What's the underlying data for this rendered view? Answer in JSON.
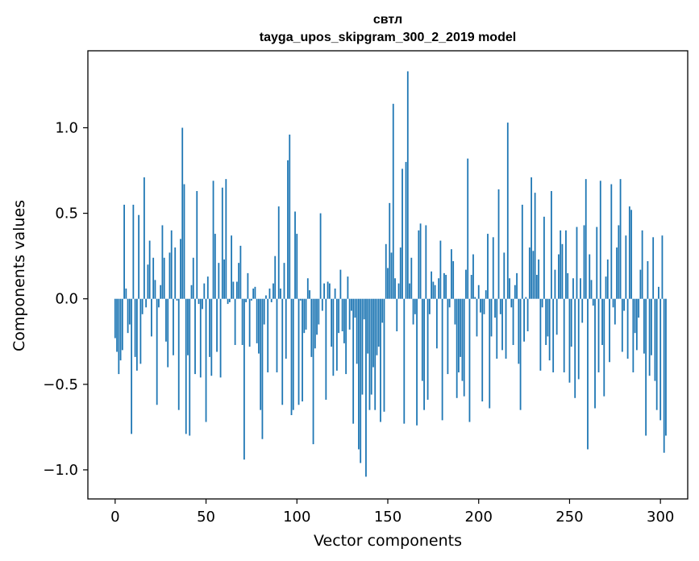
{
  "chart_data": {
    "type": "bar",
    "title": "свтл",
    "subtitle": "tayga_upos_skipgram_300_2_2019 model",
    "xlabel": "Vector components",
    "ylabel": "Components values",
    "xlim": [
      -15,
      315
    ],
    "ylim": [
      -1.17,
      1.45
    ],
    "xticks": [
      0,
      50,
      100,
      150,
      200,
      250,
      300
    ],
    "xtick_labels": [
      "0",
      "50",
      "100",
      "150",
      "200",
      "250",
      "300"
    ],
    "yticks": [
      -1.0,
      -0.5,
      0.0,
      0.5,
      1.0
    ],
    "ytick_labels": [
      "−1.0",
      "−0.5",
      "0.0",
      "0.5",
      "1.0"
    ],
    "color": "#1f77b4",
    "values": [
      -0.23,
      -0.31,
      -0.44,
      -0.36,
      -0.3,
      0.55,
      0.06,
      -0.2,
      -0.15,
      -0.79,
      0.55,
      -0.34,
      -0.42,
      0.49,
      -0.38,
      -0.09,
      0.71,
      -0.05,
      0.2,
      0.34,
      -0.22,
      0.24,
      0.11,
      -0.62,
      -0.05,
      0.08,
      0.43,
      0.24,
      -0.25,
      -0.4,
      0.27,
      0.4,
      -0.33,
      0.3,
      -0.01,
      -0.65,
      0.35,
      1.0,
      0.67,
      -0.79,
      -0.33,
      -0.8,
      0.08,
      0.24,
      -0.44,
      0.63,
      -0.03,
      -0.46,
      -0.06,
      0.09,
      -0.72,
      0.13,
      -0.34,
      -0.45,
      0.69,
      0.38,
      -0.31,
      0.21,
      -0.46,
      0.65,
      0.23,
      0.7,
      -0.03,
      -0.02,
      0.37,
      0.1,
      -0.27,
      0.1,
      0.21,
      0.31,
      -0.27,
      -0.94,
      -0.02,
      0.15,
      -0.28,
      -0.01,
      0.06,
      0.07,
      -0.26,
      -0.32,
      -0.65,
      -0.82,
      -0.15,
      0.02,
      -0.43,
      0.06,
      -0.02,
      0.09,
      0.25,
      -0.43,
      0.54,
      0.06,
      -0.62,
      0.21,
      -0.35,
      0.81,
      0.96,
      -0.68,
      -0.65,
      0.51,
      0.38,
      -0.62,
      -0.01,
      -0.6,
      -0.2,
      -0.18,
      0.12,
      0.05,
      -0.34,
      -0.85,
      -0.29,
      -0.21,
      -0.15,
      0.5,
      -0.07,
      0.09,
      -0.59,
      0.1,
      0.09,
      -0.28,
      -0.45,
      0.06,
      -0.42,
      -0.2,
      0.17,
      -0.19,
      -0.26,
      -0.44,
      0.13,
      -0.18,
      -0.07,
      -0.73,
      -0.11,
      -0.38,
      -0.88,
      -0.96,
      -0.56,
      -0.12,
      -1.04,
      -0.32,
      -0.65,
      -0.56,
      -0.4,
      -0.65,
      -0.33,
      -0.28,
      -0.72,
      -0.14,
      -0.66,
      0.32,
      0.18,
      0.56,
      0.27,
      1.14,
      0.12,
      -0.19,
      0.09,
      0.3,
      0.76,
      -0.73,
      0.8,
      1.33,
      0.09,
      0.24,
      -0.15,
      -0.09,
      -0.74,
      0.4,
      0.44,
      -0.48,
      -0.65,
      0.43,
      -0.59,
      -0.09,
      0.16,
      0.1,
      0.08,
      -0.29,
      0.12,
      0.34,
      -0.71,
      0.15,
      0.14,
      -0.44,
      -0.05,
      0.29,
      0.22,
      -0.15,
      -0.58,
      -0.43,
      -0.34,
      -0.48,
      -0.57,
      0.17,
      0.82,
      -0.72,
      0.14,
      0.26,
      0.01,
      -0.22,
      0.08,
      -0.08,
      -0.6,
      -0.09,
      0.05,
      0.38,
      -0.64,
      -0.22,
      0.36,
      -0.11,
      -0.35,
      0.64,
      -0.09,
      -0.3,
      0.27,
      -0.35,
      1.03,
      0.12,
      -0.05,
      -0.27,
      0.08,
      0.15,
      -0.38,
      -0.65,
      0.55,
      -0.25,
      0.01,
      -0.19,
      0.3,
      0.71,
      0.28,
      0.62,
      0.14,
      0.23,
      -0.42,
      -0.05,
      0.48,
      -0.27,
      -0.22,
      -0.36,
      0.63,
      -0.43,
      0.17,
      -0.21,
      0.26,
      0.4,
      0.32,
      -0.43,
      0.4,
      0.15,
      -0.49,
      -0.28,
      0.12,
      -0.58,
      0.42,
      -0.47,
      0.12,
      -0.14,
      0.43,
      0.7,
      -0.88,
      0.26,
      0.11,
      -0.04,
      -0.64,
      0.42,
      -0.43,
      0.69,
      -0.27,
      -0.57,
      0.13,
      0.23,
      -0.37,
      0.67,
      -0.05,
      -0.15,
      0.3,
      0.43,
      0.7,
      -0.31,
      -0.07,
      0.37,
      -0.35,
      0.54,
      0.52,
      -0.43,
      -0.2,
      -0.3,
      -0.11,
      0.17,
      0.4,
      -0.32,
      -0.8,
      0.22,
      -0.45,
      -0.33,
      0.36,
      -0.48,
      -0.65,
      0.07,
      -0.71,
      0.37,
      -0.9,
      -0.8
    ]
  }
}
